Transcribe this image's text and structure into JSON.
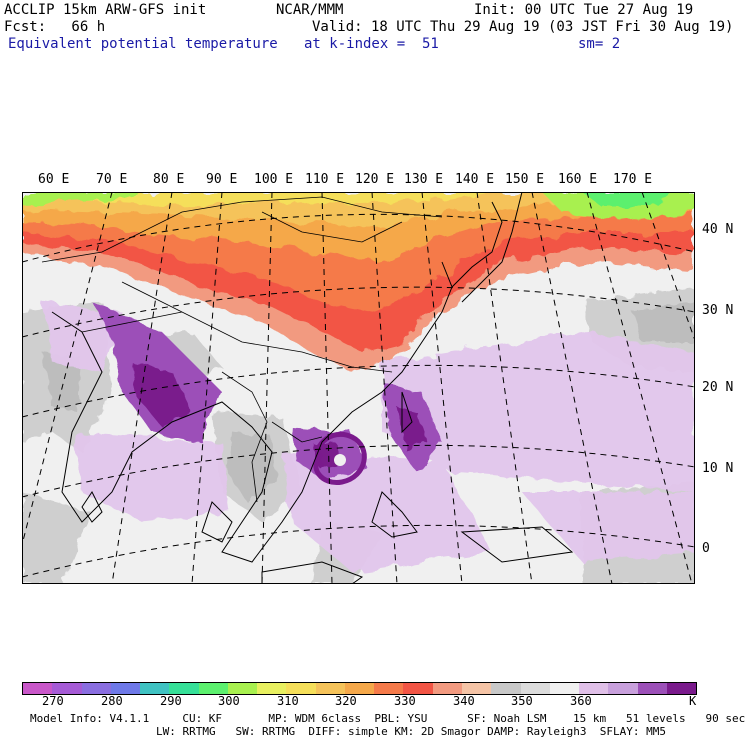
{
  "header": {
    "model": "ACCLIP 15km ARW-GFS init",
    "org": "NCAR/MMM",
    "init": "Init: 00 UTC Tue 27 Aug 19",
    "fcst": "Fcst:   66 h",
    "valid": "Valid: 18 UTC Thu 29 Aug 19 (03 JST Fri 30 Aug 19)",
    "field": "Equivalent potential temperature",
    "level": "at k-index =  51",
    "smoothing": "sm= 2"
  },
  "map": {
    "lon_labels": [
      "60 E",
      "70 E",
      "80 E",
      "90 E",
      "100 E",
      "110 E",
      "120 E",
      "130 E",
      "140 E",
      "150 E",
      "160 E",
      "170 E"
    ],
    "lat_labels": [
      "40 N",
      "30 N",
      "20 N",
      "10 N",
      "0"
    ]
  },
  "colorbar": {
    "colors": [
      "#c957c9",
      "#a65bd6",
      "#8a6ee0",
      "#6e79e8",
      "#3fc2c2",
      "#36e098",
      "#5cf06e",
      "#a8f04f",
      "#e8f060",
      "#f5df5a",
      "#f5c35a",
      "#f5a84a",
      "#f57a4a",
      "#f25545",
      "#f29a80",
      "#f5c4a6",
      "#c8c8c8",
      "#dcdcdc",
      "#f0f0f0",
      "#e0c0e8",
      "#c8a0dc",
      "#9c50b8",
      "#7a1a8c"
    ],
    "labels": [
      "270",
      "280",
      "290",
      "300",
      "310",
      "320",
      "330",
      "340",
      "350",
      "360",
      "K"
    ]
  },
  "footer": {
    "line1": "Model Info: V4.1.1     CU: KF       MP: WDM 6class  PBL: YSU      SF: Noah LSM    15 km   51 levels   90 sec",
    "line2": "LW: RRTMG   SW: RRTMG  DIFF: simple KM: 2D Smagor DAMP: Rayleigh3  SFLAY: MM5"
  }
}
